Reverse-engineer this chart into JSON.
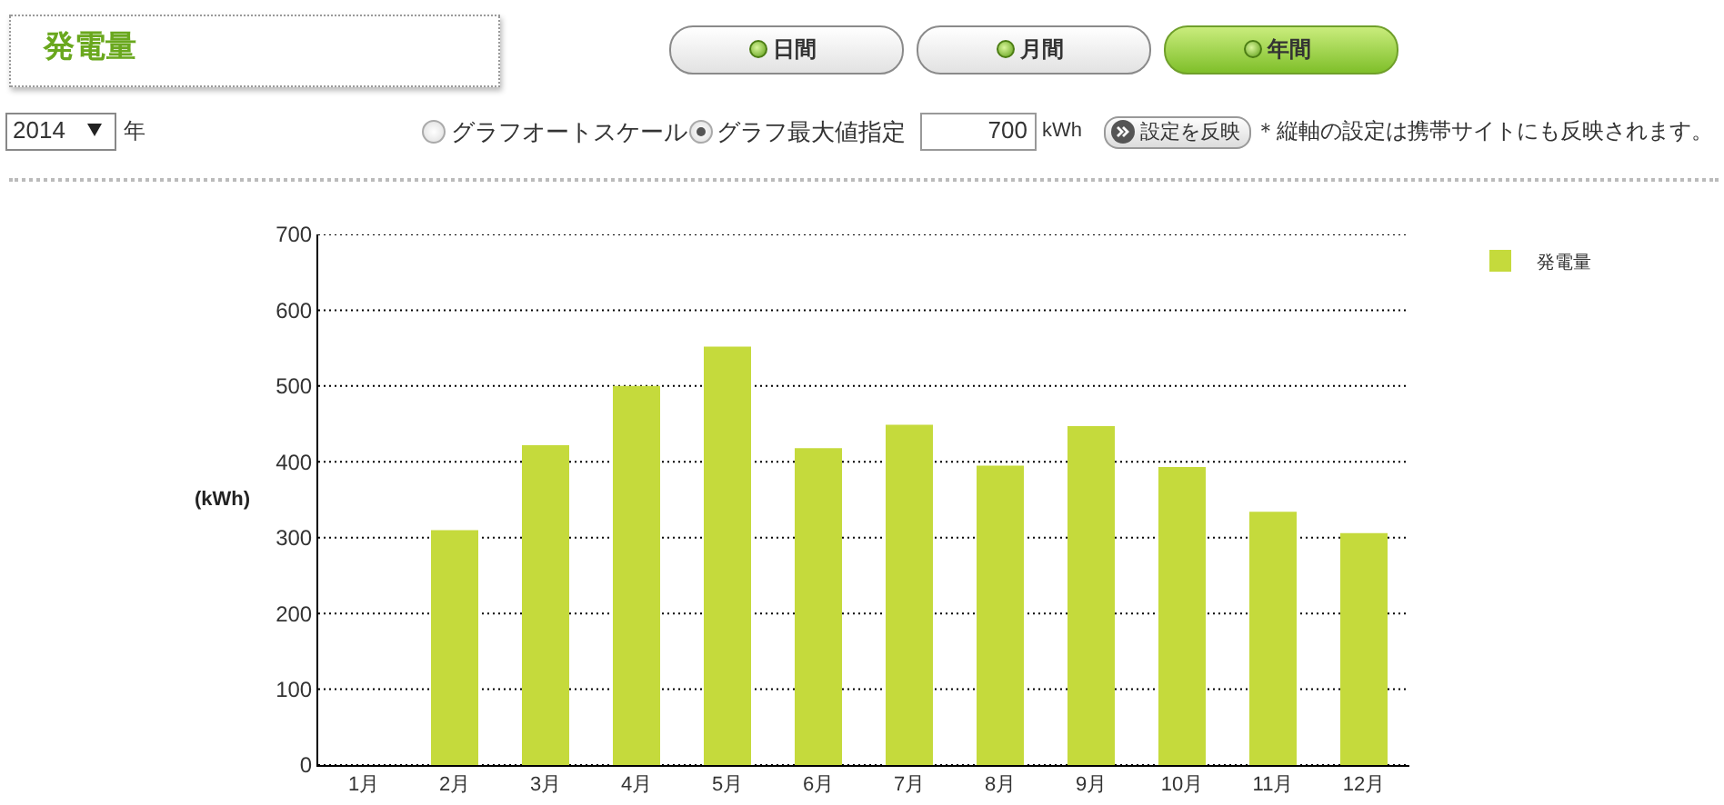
{
  "chart_data": {
    "type": "bar",
    "title": "発電量",
    "ylabel": "(kWh)",
    "annotations": [
      "日間",
      "月間",
      "年間",
      "2014",
      "年",
      "グラフオートスケール",
      "グラフ最大値指定",
      "700",
      "kWh",
      "設定を反映",
      "＊縦軸の設定は携帯サイトにも反映されます。"
    ],
    "categories": [
      "1月",
      "2月",
      "3月",
      "4月",
      "5月",
      "6月",
      "7月",
      "8月",
      "9月",
      "10月",
      "11月",
      "12月"
    ],
    "series": [
      {
        "name": "発電量",
        "color": "#c5da3c",
        "values": [
          null,
          310,
          422,
          500,
          552,
          418,
          449,
          395,
          447,
          393,
          334,
          306
        ]
      }
    ],
    "ylim": [
      0,
      700
    ],
    "yticks": [
      0,
      100,
      200,
      300,
      400,
      500,
      600,
      700
    ],
    "grid": "y",
    "legend": "top right"
  }
}
